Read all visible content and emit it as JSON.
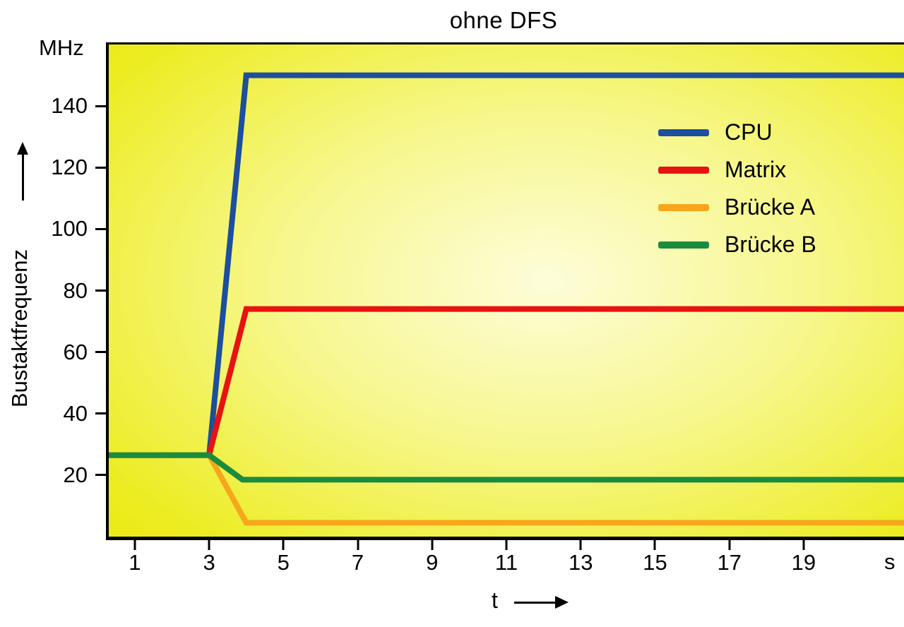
{
  "title": "ohne DFS",
  "axes": {
    "y_unit": "MHz",
    "y_caption": "Bustaktfrequenz",
    "x_caption": "t",
    "x_unit": "s"
  },
  "chart_data": {
    "type": "line",
    "title": "ohne DFS",
    "xlabel": "t (s)",
    "ylabel": "Bustaktfrequenz (MHz)",
    "xlim": [
      0.3,
      21.7
    ],
    "ylim": [
      0,
      160
    ],
    "x_ticks": [
      1,
      3,
      5,
      7,
      9,
      11,
      13,
      15,
      17,
      19
    ],
    "y_ticks": [
      20,
      40,
      60,
      80,
      100,
      120,
      140
    ],
    "grid": false,
    "legend_position": "upper-right-inside",
    "plot_background": {
      "edge_color": "#e7e700",
      "center_color": "#fdfdda"
    },
    "series": [
      {
        "name": "CPU",
        "color": "#1d4f9e",
        "points": [
          [
            0.3,
            26.5
          ],
          [
            3,
            26.5
          ],
          [
            4,
            150
          ],
          [
            21.7,
            150
          ]
        ]
      },
      {
        "name": "Matrix",
        "color": "#e81210",
        "points": [
          [
            0.3,
            26.5
          ],
          [
            3,
            26.5
          ],
          [
            4,
            74
          ],
          [
            21.7,
            74
          ]
        ]
      },
      {
        "name": "Brücke A",
        "color": "#f7a71c",
        "points": [
          [
            0.3,
            26.5
          ],
          [
            3,
            26.5
          ],
          [
            4,
            4.5
          ],
          [
            21.7,
            4.5
          ]
        ]
      },
      {
        "name": "Brücke B",
        "color": "#1b8b3e",
        "points": [
          [
            0.3,
            26.5
          ],
          [
            3,
            26.5
          ],
          [
            3.9,
            18.5
          ],
          [
            21.7,
            18.5
          ]
        ]
      }
    ]
  }
}
